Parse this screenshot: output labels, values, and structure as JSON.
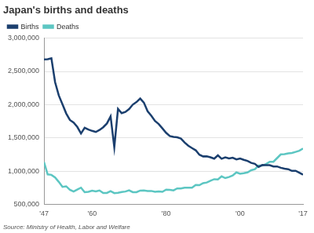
{
  "chart_data": {
    "type": "line",
    "title": "Japan's births and deaths",
    "source": "Source: Ministry of Health, Labor and Welfare",
    "x": [
      1947,
      1948,
      1949,
      1950,
      1951,
      1952,
      1953,
      1954,
      1955,
      1956,
      1957,
      1958,
      1959,
      1960,
      1961,
      1962,
      1963,
      1964,
      1965,
      1966,
      1967,
      1968,
      1969,
      1970,
      1971,
      1972,
      1973,
      1974,
      1975,
      1976,
      1977,
      1978,
      1979,
      1980,
      1981,
      1982,
      1983,
      1984,
      1985,
      1986,
      1987,
      1988,
      1989,
      1990,
      1991,
      1992,
      1993,
      1994,
      1995,
      1996,
      1997,
      1998,
      1999,
      2000,
      2001,
      2002,
      2003,
      2004,
      2005,
      2006,
      2007,
      2008,
      2009,
      2010,
      2011,
      2012,
      2013,
      2014,
      2015,
      2016,
      2017
    ],
    "series": [
      {
        "name": "Births",
        "color": "#1b3f6e",
        "values": [
          2679000,
          2682000,
          2697000,
          2338000,
          2138000,
          2005000,
          1868000,
          1770000,
          1731000,
          1665000,
          1567000,
          1653000,
          1626000,
          1606000,
          1589000,
          1619000,
          1660000,
          1717000,
          1824000,
          1361000,
          1936000,
          1872000,
          1890000,
          1934000,
          2001000,
          2039000,
          2092000,
          2030000,
          1901000,
          1833000,
          1755000,
          1709000,
          1643000,
          1577000,
          1529000,
          1515000,
          1509000,
          1490000,
          1432000,
          1383000,
          1347000,
          1314000,
          1247000,
          1222000,
          1223000,
          1209000,
          1188000,
          1238000,
          1187000,
          1207000,
          1192000,
          1203000,
          1178000,
          1191000,
          1171000,
          1154000,
          1124000,
          1111000,
          1063000,
          1093000,
          1090000,
          1091000,
          1070000,
          1071000,
          1051000,
          1037000,
          1030000,
          1004000,
          1006000,
          977000,
          946000
        ]
      },
      {
        "name": "Deaths",
        "color": "#5cc6c2",
        "values": [
          1138000,
          951000,
          945000,
          905000,
          839000,
          765000,
          773000,
          721000,
          694000,
          724000,
          752000,
          684000,
          690000,
          707000,
          696000,
          710000,
          671000,
          673000,
          700000,
          670000,
          675000,
          687000,
          694000,
          713000,
          685000,
          684000,
          709000,
          711000,
          702000,
          703000,
          690000,
          696000,
          690000,
          723000,
          720000,
          712000,
          740000,
          740000,
          752000,
          751000,
          751000,
          793000,
          789000,
          820000,
          830000,
          857000,
          879000,
          876000,
          922000,
          896000,
          913000,
          936000,
          982000,
          962000,
          970000,
          982000,
          1015000,
          1029000,
          1084000,
          1084000,
          1108000,
          1142000,
          1142000,
          1197000,
          1253000,
          1256000,
          1268000,
          1273000,
          1290000,
          1308000,
          1340000
        ]
      }
    ],
    "xlim": [
      1947,
      2017
    ],
    "xticks": [
      {
        "value": 1947,
        "label": "'47"
      },
      {
        "value": 1960,
        "label": "'60"
      },
      {
        "value": 1980,
        "label": "'80"
      },
      {
        "value": 2000,
        "label": "'00"
      },
      {
        "value": 2017,
        "label": "'17"
      }
    ],
    "ylim": [
      500000,
      3000000
    ],
    "yticks": [
      {
        "value": 500000,
        "label": "500,000"
      },
      {
        "value": 1000000,
        "label": "1,000,000"
      },
      {
        "value": 1500000,
        "label": "1,500,000"
      },
      {
        "value": 2000000,
        "label": "2,000,000"
      },
      {
        "value": 2500000,
        "label": "2,500,000"
      },
      {
        "value": 3000000,
        "label": "3,000,000"
      }
    ],
    "grid": true,
    "legend": "top-left"
  }
}
